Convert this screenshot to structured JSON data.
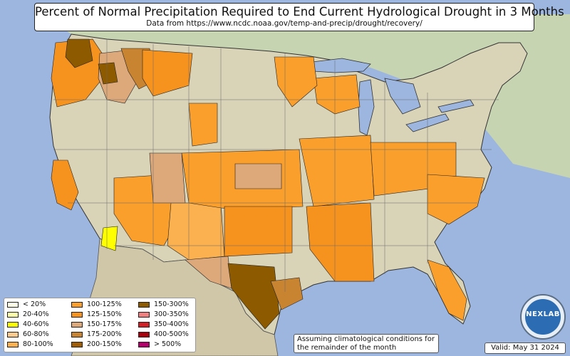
{
  "header": {
    "title": "Percent of Normal Precipitation Required to End Current Hydrological Drought in 3 Months",
    "subtitle": "Data from https://www.ncdc.noaa.gov/temp-and-precip/drought/recovery/"
  },
  "legend": {
    "items": [
      {
        "label": "< 20%",
        "color": "#ffffe6"
      },
      {
        "label": "20-40%",
        "color": "#ffffaa"
      },
      {
        "label": "40-60%",
        "color": "#ffff00"
      },
      {
        "label": "60-80%",
        "color": "#fcc98e"
      },
      {
        "label": "80-100%",
        "color": "#fbb14f"
      },
      {
        "label": "100-125%",
        "color": "#fa9e2c"
      },
      {
        "label": "125-150%",
        "color": "#f6921e"
      },
      {
        "label": "150-175%",
        "color": "#dda97b"
      },
      {
        "label": "175-200%",
        "color": "#c98432"
      },
      {
        "label": "200-150%",
        "color": "#a05d06"
      },
      {
        "label": "150-300%",
        "color": "#8d5a00"
      },
      {
        "label": "300-350%",
        "color": "#f08080"
      },
      {
        "label": "350-400%",
        "color": "#d21f26"
      },
      {
        "label": "400-500%",
        "color": "#a8000c"
      },
      {
        "label": "> 500%",
        "color": "#b3006b"
      }
    ]
  },
  "footer": {
    "note": "Assuming climatological conditions for the remainder of the month",
    "valid": "Valid: May 31 2024",
    "logo_text": "NEXLAB"
  },
  "colors": {
    "ocean": "#9cb6e0",
    "land": "#d9d4b8",
    "canada": "#c7d4b2",
    "mexico": "#cfc7a8"
  }
}
